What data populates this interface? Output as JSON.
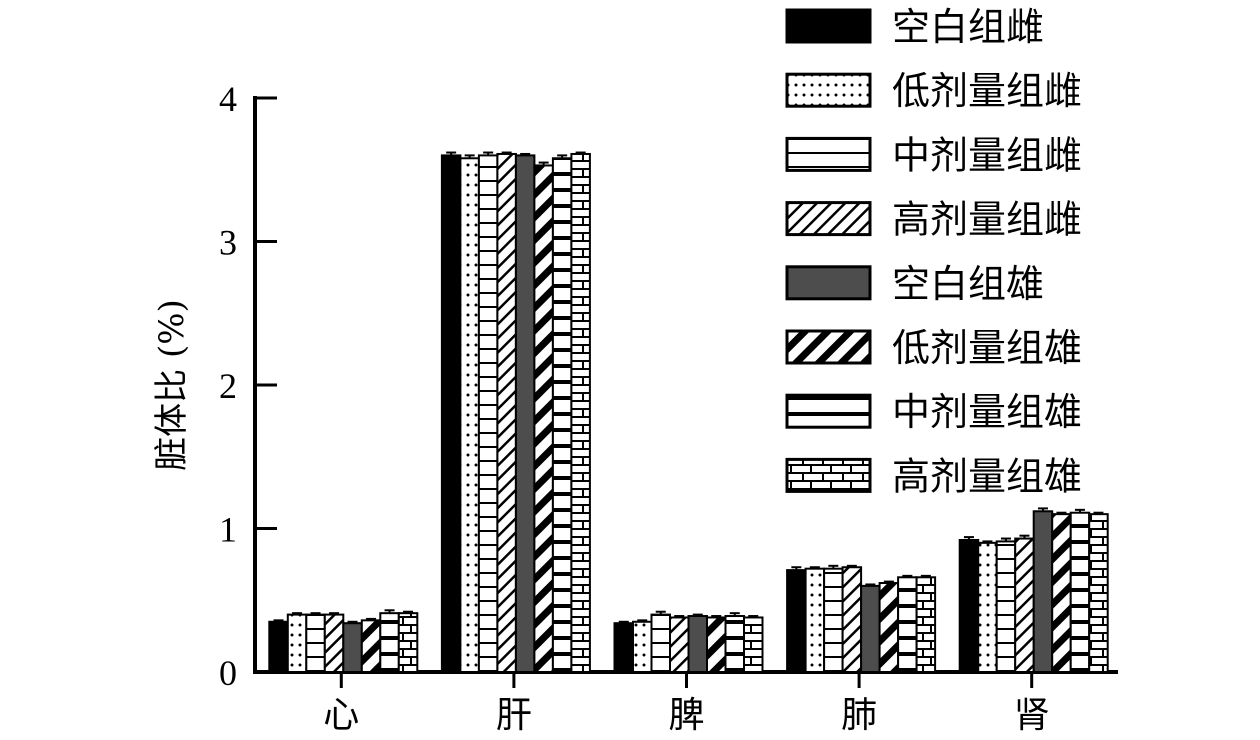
{
  "chart_data": {
    "type": "bar",
    "title": "",
    "xlabel": "",
    "ylabel": "脏体比 (%)",
    "ylim": [
      0,
      4
    ],
    "yticks": [
      "0",
      "1",
      "2",
      "3",
      "4"
    ],
    "categories": [
      "心",
      "肝",
      "脾",
      "肺",
      "肾"
    ],
    "grid": false,
    "legend_position": "top-right",
    "series": [
      {
        "name": "空白组雌",
        "pattern": "solid-black",
        "values": [
          0.35,
          3.6,
          0.34,
          0.71,
          0.92
        ],
        "errors": [
          0.01,
          0.02,
          0.01,
          0.02,
          0.02
        ]
      },
      {
        "name": "低剂量组雌",
        "pattern": "dots",
        "values": [
          0.4,
          3.58,
          0.35,
          0.72,
          0.9
        ],
        "errors": [
          0.01,
          0.02,
          0.01,
          0.01,
          0.01
        ]
      },
      {
        "name": "中剂量组雌",
        "pattern": "hlines",
        "values": [
          0.4,
          3.6,
          0.4,
          0.72,
          0.91
        ],
        "errors": [
          0.01,
          0.02,
          0.02,
          0.02,
          0.02
        ]
      },
      {
        "name": "高剂量组雌",
        "pattern": "diag-thin",
        "values": [
          0.4,
          3.61,
          0.38,
          0.73,
          0.93
        ],
        "errors": [
          0.01,
          0.01,
          0.01,
          0.01,
          0.02
        ]
      },
      {
        "name": "空白组雄",
        "pattern": "solid-gray",
        "values": [
          0.34,
          3.6,
          0.39,
          0.6,
          1.12
        ],
        "errors": [
          0.01,
          0.01,
          0.01,
          0.01,
          0.02
        ]
      },
      {
        "name": "低剂量组雄",
        "pattern": "diag-thick",
        "values": [
          0.36,
          3.53,
          0.38,
          0.62,
          1.1
        ],
        "errors": [
          0.01,
          0.02,
          0.01,
          0.01,
          0.01
        ]
      },
      {
        "name": "中剂量组雄",
        "pattern": "hlines-thick",
        "values": [
          0.41,
          3.58,
          0.39,
          0.66,
          1.11
        ],
        "errors": [
          0.02,
          0.02,
          0.02,
          0.01,
          0.02
        ]
      },
      {
        "name": "高剂量组雄",
        "pattern": "brick",
        "values": [
          0.41,
          3.61,
          0.38,
          0.66,
          1.1
        ],
        "errors": [
          0.01,
          0.01,
          0.01,
          0.01,
          0.01
        ]
      }
    ]
  }
}
